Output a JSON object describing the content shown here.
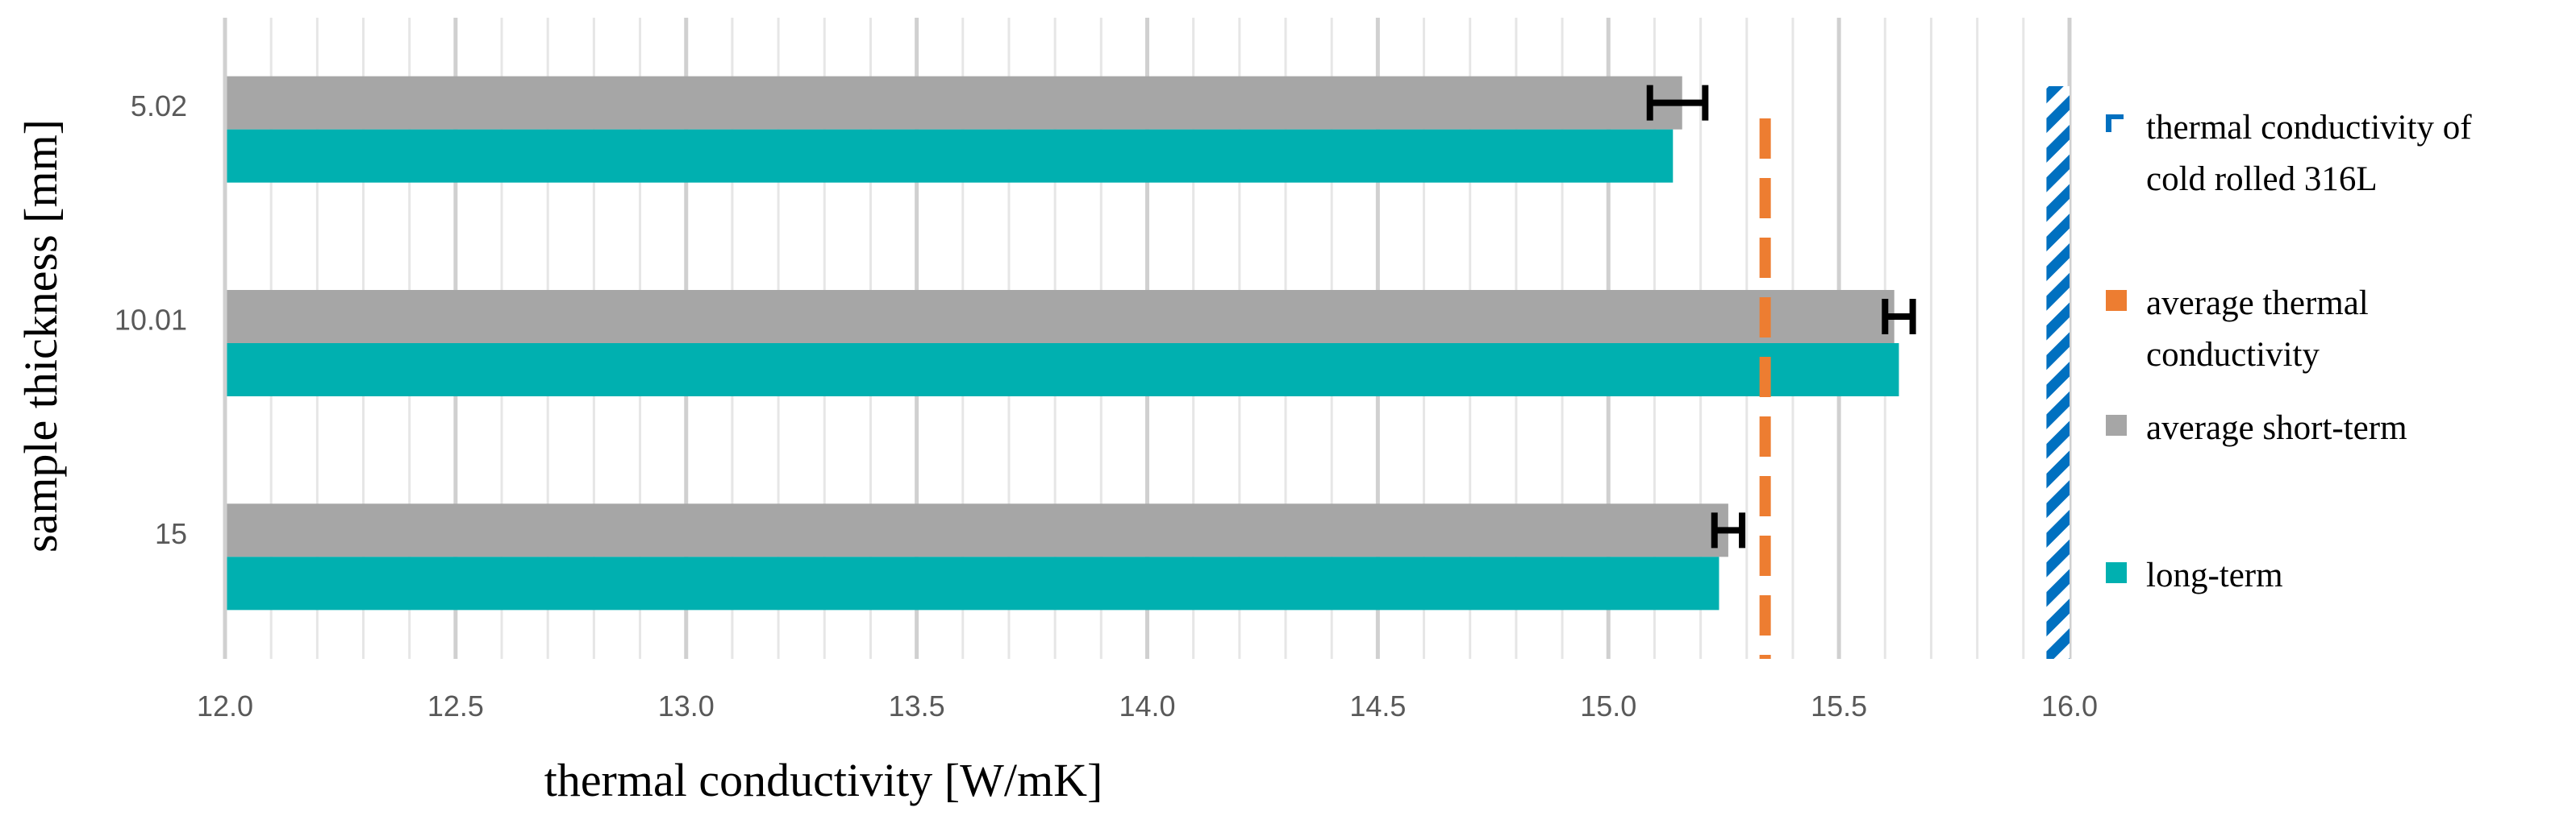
{
  "chart_data": {
    "type": "bar",
    "orientation": "horizontal",
    "title": "",
    "xlabel": "thermal conductivity [W/mK]",
    "ylabel": "sample thickness [mm]",
    "xlim": [
      12.0,
      16.0
    ],
    "x_ticks": [
      "12.0",
      "12.5",
      "13.0",
      "13.5",
      "14.0",
      "14.5",
      "15.0",
      "15.5",
      "16.0"
    ],
    "categories": [
      "5.02",
      "10.01",
      "15"
    ],
    "series": [
      {
        "name": "average short-term",
        "color": "#a6a6a6",
        "values": [
          15.16,
          15.62,
          15.26
        ],
        "error_low": [
          15.09,
          15.6,
          15.23
        ],
        "error_high": [
          15.21,
          15.66,
          15.29
        ]
      },
      {
        "name": "long-term",
        "color": "#00b0b0",
        "values": [
          15.14,
          15.63,
          15.24
        ]
      }
    ],
    "reference_lines": [
      {
        "name": "average thermal conductivity",
        "value": 15.34,
        "color": "#ed7d31",
        "style": "dashed"
      }
    ],
    "reference_bands": [
      {
        "name": "thermal conductivity of cold rolled 316L",
        "min": 15.95,
        "max": 16.0,
        "color": "#0070c0",
        "pattern": "hatched"
      }
    ],
    "grid": true,
    "legend_position": "right",
    "legend": [
      {
        "lines": [
          "thermal conductivity of",
          "cold rolled 316L"
        ],
        "color": "#0070c0",
        "swatch": "hatch"
      },
      {
        "lines": [
          "average thermal",
          "conductivity"
        ],
        "color": "#ed7d31",
        "swatch": "solid"
      },
      {
        "lines": [
          "average short-term"
        ],
        "color": "#a6a6a6",
        "swatch": "solid"
      },
      {
        "lines": [
          "long-term"
        ],
        "color": "#00b0b0",
        "swatch": "solid"
      }
    ]
  }
}
